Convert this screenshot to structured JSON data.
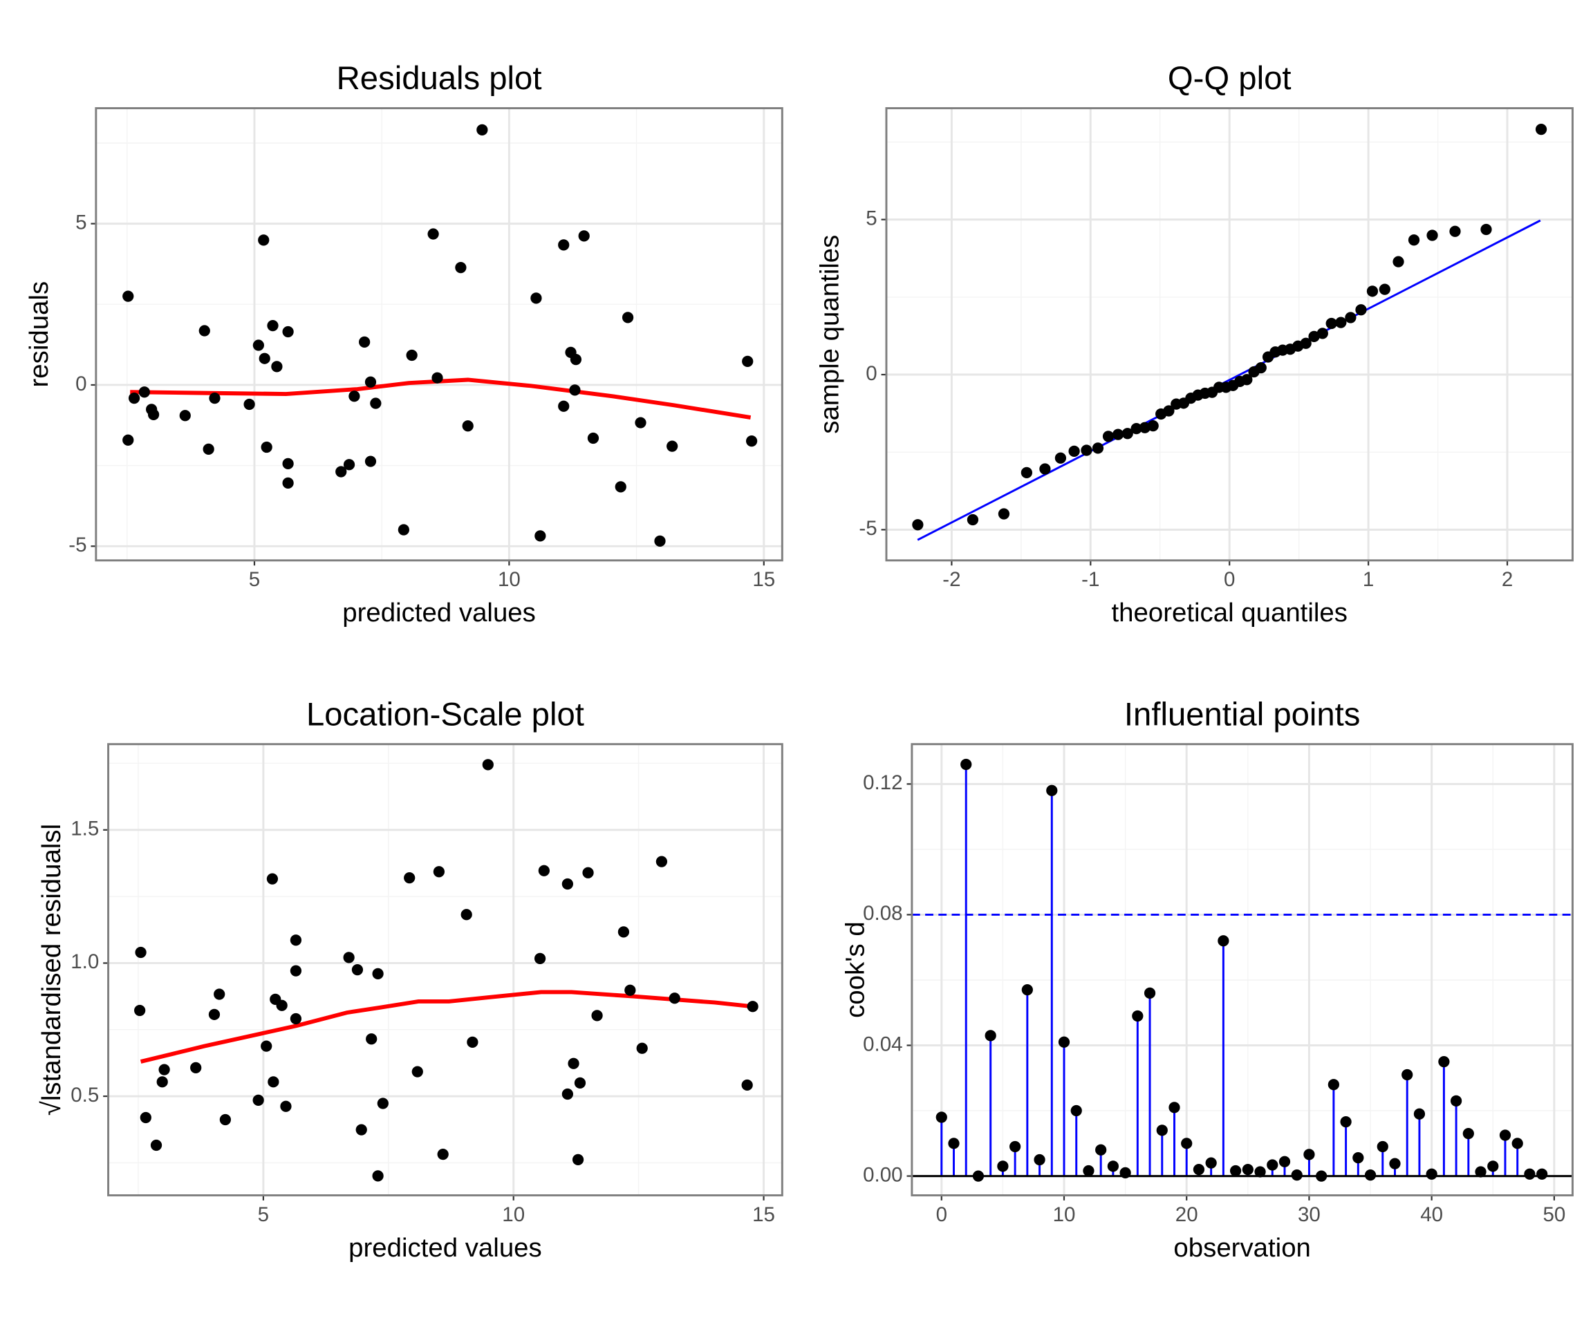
{
  "chart_data": [
    {
      "type": "scatter",
      "title": "Residuals plot",
      "xlabel": "predicted values",
      "ylabel": "residuals",
      "xlim": [
        1.89,
        15.36
      ],
      "ylim": [
        -5.44,
        8.58
      ],
      "xticks": [
        5,
        10,
        15
      ],
      "yticks": [
        -5,
        0,
        5
      ],
      "xminor": [
        2.5,
        7.5,
        12.5
      ],
      "yminor": [
        -2.5,
        2.5,
        7.5
      ],
      "grid": true,
      "points": {
        "color": "#000000",
        "x": [
          2.52,
          2.64,
          2.84,
          2.98,
          3.02,
          2.52,
          3.64,
          4.02,
          4.1,
          4.22,
          4.9,
          5.08,
          5.18,
          5.2,
          5.24,
          5.36,
          5.44,
          5.66,
          5.66,
          5.66,
          6.7,
          6.86,
          6.96,
          7.16,
          7.28,
          7.28,
          7.38,
          7.93,
          8.09,
          8.51,
          8.59,
          9.05,
          9.19,
          9.47,
          10.53,
          10.61,
          11.07,
          11.07,
          11.21,
          11.31,
          11.29,
          11.47,
          11.65,
          12.19,
          12.33,
          12.58,
          12.96,
          13.2,
          14.68,
          14.76
        ],
        "y": [
          2.75,
          -0.41,
          -0.22,
          -0.76,
          -0.92,
          -1.71,
          -0.95,
          1.68,
          -1.99,
          -0.41,
          -0.6,
          1.23,
          4.49,
          0.82,
          -1.93,
          1.84,
          0.57,
          1.65,
          -2.44,
          -3.04,
          -2.69,
          -2.47,
          -0.35,
          1.33,
          0.09,
          -2.37,
          -0.57,
          -4.49,
          0.92,
          4.68,
          0.22,
          3.64,
          -1.27,
          7.91,
          2.69,
          -4.68,
          -0.66,
          4.34,
          1.01,
          0.79,
          -0.16,
          4.62,
          -1.65,
          -3.16,
          2.09,
          -1.17,
          -4.84,
          -1.9,
          0.73,
          -1.74
        ]
      },
      "trend": {
        "color": "#ff0000",
        "x": [
          2.56,
          4.02,
          5.62,
          7.02,
          8.03,
          9.19,
          10.43,
          12.03,
          13.24,
          14.74
        ],
        "y": [
          -0.22,
          -0.25,
          -0.28,
          -0.13,
          0.06,
          0.16,
          -0.03,
          -0.35,
          -0.63,
          -1.01
        ]
      }
    },
    {
      "type": "scatter",
      "title": "Q-Q plot",
      "xlabel": "theoretical quantiles",
      "ylabel": "sample quantiles",
      "xlim": [
        -2.47,
        2.47
      ],
      "ylim": [
        -5.99,
        8.59
      ],
      "xticks": [
        -2,
        -1,
        0,
        1,
        2
      ],
      "yticks": [
        -5,
        0,
        5
      ],
      "xminor": [
        -1.5,
        -0.5,
        0.5,
        1.5
      ],
      "yminor": [
        -2.5,
        2.5,
        7.5
      ],
      "grid": true,
      "points": {
        "color": "#000000",
        "x": [
          -2.244,
          -1.848,
          -1.624,
          -1.46,
          -1.328,
          -1.216,
          -1.118,
          -1.029,
          -0.947,
          -0.872,
          -0.802,
          -0.734,
          -0.67,
          -0.609,
          -0.55,
          -0.493,
          -0.437,
          -0.383,
          -0.33,
          -0.278,
          -0.227,
          -0.176,
          -0.125,
          -0.075,
          -0.025,
          0.025,
          0.075,
          0.125,
          0.176,
          0.227,
          0.278,
          0.33,
          0.383,
          0.437,
          0.493,
          0.55,
          0.609,
          0.67,
          0.734,
          0.802,
          0.872,
          0.947,
          1.029,
          1.118,
          1.216,
          1.328,
          1.46,
          1.624,
          1.848,
          2.244
        ],
        "y": [
          -4.84,
          -4.68,
          -4.49,
          -3.16,
          -3.04,
          -2.69,
          -2.47,
          -2.44,
          -2.37,
          -1.99,
          -1.93,
          -1.9,
          -1.74,
          -1.71,
          -1.65,
          -1.27,
          -1.17,
          -0.95,
          -0.92,
          -0.76,
          -0.66,
          -0.6,
          -0.57,
          -0.41,
          -0.41,
          -0.35,
          -0.22,
          -0.16,
          0.09,
          0.22,
          0.57,
          0.73,
          0.79,
          0.82,
          0.92,
          1.01,
          1.23,
          1.33,
          1.65,
          1.68,
          1.84,
          2.09,
          2.69,
          2.75,
          3.64,
          4.34,
          4.49,
          4.62,
          4.68,
          7.91
        ]
      },
      "trend": {
        "color": "#0000ff",
        "x": [
          -2.245,
          2.238
        ],
        "y": [
          -5.33,
          4.97
        ]
      }
    },
    {
      "type": "scatter",
      "title": "Location-Scale plot",
      "xlabel": "predicted values",
      "ylabel": "√lstandardised residualsl",
      "xlim": [
        1.9,
        15.37
      ],
      "ylim": [
        0.128,
        1.822
      ],
      "xticks": [
        5,
        10,
        15
      ],
      "yticks": [
        0.5,
        {
          "value": 1,
          "label": "1.0"
        },
        1.5
      ],
      "xminor": [
        2.5,
        7.5,
        12.5
      ],
      "yminor": [
        0.25,
        0.75,
        1.25,
        1.75
      ],
      "grid": true,
      "points": {
        "color": "#000000",
        "x": [
          2.55,
          2.53,
          2.65,
          2.86,
          2.98,
          3.02,
          3.65,
          4.02,
          4.12,
          4.24,
          4.9,
          5.06,
          5.18,
          5.2,
          5.24,
          5.37,
          5.45,
          5.65,
          5.65,
          5.65,
          6.71,
          6.88,
          6.96,
          7.16,
          7.29,
          7.29,
          7.39,
          7.92,
          8.08,
          8.51,
          8.59,
          9.06,
          9.18,
          9.49,
          10.53,
          10.61,
          11.08,
          11.08,
          11.2,
          11.29,
          11.33,
          11.49,
          11.67,
          12.2,
          12.33,
          12.57,
          12.96,
          13.22,
          14.67,
          14.78
        ],
        "y": [
          1.04,
          0.822,
          0.42,
          0.316,
          0.554,
          0.6,
          0.607,
          0.807,
          0.883,
          0.412,
          0.485,
          0.688,
          1.316,
          0.554,
          0.864,
          0.841,
          0.462,
          1.086,
          0.971,
          0.791,
          1.021,
          0.975,
          0.374,
          0.715,
          0.96,
          0.201,
          0.473,
          1.32,
          0.592,
          1.343,
          0.282,
          1.182,
          0.703,
          1.745,
          1.017,
          1.347,
          1.297,
          0.508,
          0.623,
          0.262,
          0.55,
          1.339,
          0.803,
          1.117,
          0.898,
          0.68,
          1.381,
          0.868,
          0.542,
          0.837
        ]
      },
      "trend": {
        "color": "#ff0000",
        "x": [
          2.55,
          3.82,
          5.65,
          6.67,
          7.33,
          8.1,
          8.71,
          9.53,
          10.55,
          11.16,
          12.39,
          14.02,
          14.78
        ],
        "y": [
          0.63,
          0.688,
          0.764,
          0.814,
          0.833,
          0.856,
          0.856,
          0.872,
          0.891,
          0.891,
          0.875,
          0.852,
          0.837
        ]
      }
    },
    {
      "type": "stem",
      "title": "Influential points",
      "xlabel": "observation",
      "ylabel": "cook's d",
      "xlim": [
        -2.42,
        51.5
      ],
      "ylim": [
        -0.0059,
        0.1322
      ],
      "xticks": [
        0,
        10,
        20,
        30,
        40,
        50
      ],
      "yticks": [
        {
          "value": 0,
          "label": "0.00"
        },
        {
          "value": 0.04,
          "label": "0.04"
        },
        {
          "value": 0.08,
          "label": "0.08"
        },
        {
          "value": 0.12,
          "label": "0.12"
        }
      ],
      "xminor": [
        5,
        15,
        25,
        35,
        45
      ],
      "yminor": [
        0.02,
        0.06,
        0.1
      ],
      "grid": true,
      "color": "#0000ff",
      "threshold": 0.08,
      "x": [
        0,
        1,
        2,
        3,
        4,
        5,
        6,
        7,
        8,
        9,
        10,
        11,
        12,
        13,
        14,
        15,
        16,
        17,
        18,
        19,
        20,
        21,
        22,
        23,
        24,
        25,
        26,
        27,
        28,
        29,
        30,
        31,
        32,
        33,
        34,
        35,
        36,
        37,
        38,
        39,
        40,
        41,
        42,
        43,
        44,
        45,
        46,
        47,
        48,
        49
      ],
      "values": [
        0.018,
        0.01,
        0.126,
        0.0,
        0.043,
        0.003,
        0.009,
        0.057,
        0.005,
        0.118,
        0.041,
        0.02,
        0.0016,
        0.008,
        0.003,
        0.001,
        0.049,
        0.056,
        0.014,
        0.021,
        0.01,
        0.002,
        0.004,
        0.072,
        0.0016,
        0.002,
        0.0013,
        0.0034,
        0.0044,
        0.0003,
        0.0066,
        0.0,
        0.028,
        0.0166,
        0.0056,
        0.0003,
        0.009,
        0.0038,
        0.031,
        0.019,
        0.0006,
        0.035,
        0.023,
        0.013,
        0.0013,
        0.003,
        0.0125,
        0.01,
        0.0006,
        0.0006
      ]
    }
  ]
}
